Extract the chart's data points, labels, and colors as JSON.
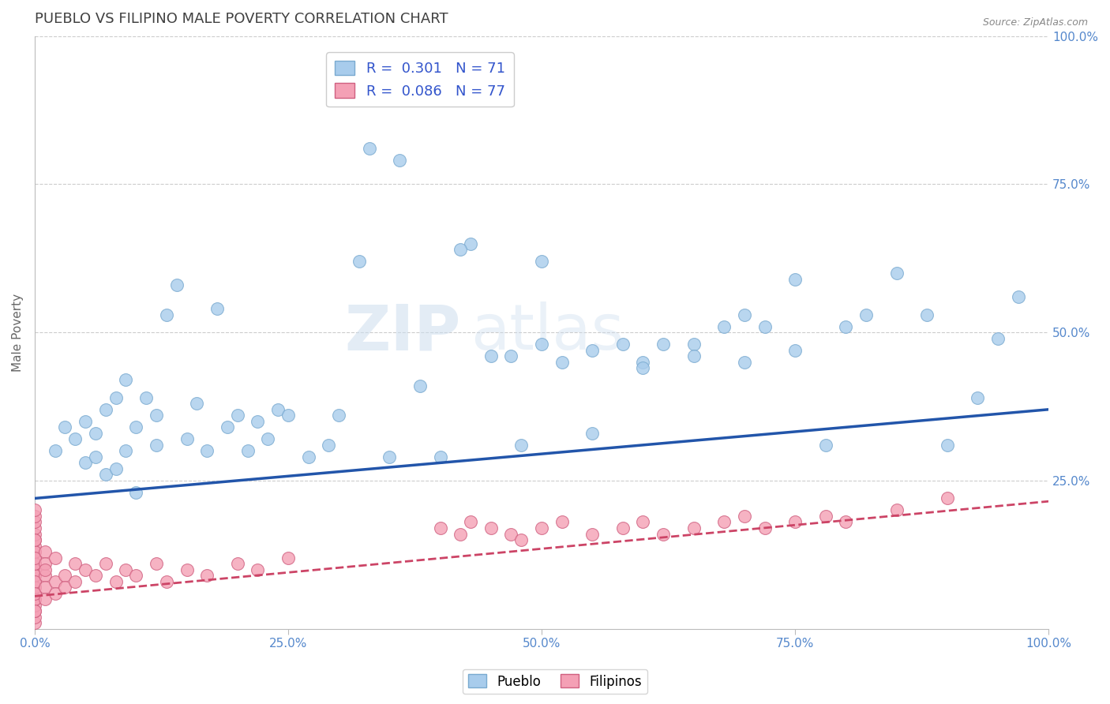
{
  "title": "PUEBLO VS FILIPINO MALE POVERTY CORRELATION CHART",
  "source_text": "Source: ZipAtlas.com",
  "ylabel": "Male Poverty",
  "xlim": [
    0.0,
    1.0
  ],
  "ylim": [
    0.0,
    1.0
  ],
  "pueblo_color": "#A8CCEC",
  "pueblo_edge_color": "#7AAAD0",
  "filipino_color": "#F4A0B5",
  "filipino_edge_color": "#D06080",
  "pueblo_line_color": "#2255AA",
  "filipino_line_color": "#CC4466",
  "watermark_zip": "ZIP",
  "watermark_atlas": "atlas",
  "background_color": "#FFFFFF",
  "title_color": "#404040",
  "legend_text_color": "#3355CC",
  "tick_color": "#5588CC",
  "pueblo_x": [
    0.02,
    0.03,
    0.04,
    0.05,
    0.05,
    0.06,
    0.06,
    0.07,
    0.07,
    0.08,
    0.08,
    0.09,
    0.09,
    0.1,
    0.1,
    0.11,
    0.12,
    0.12,
    0.13,
    0.14,
    0.15,
    0.16,
    0.17,
    0.18,
    0.19,
    0.2,
    0.21,
    0.22,
    0.23,
    0.24,
    0.25,
    0.27,
    0.29,
    0.3,
    0.32,
    0.35,
    0.38,
    0.4,
    0.43,
    0.45,
    0.47,
    0.48,
    0.5,
    0.52,
    0.55,
    0.58,
    0.6,
    0.62,
    0.65,
    0.68,
    0.7,
    0.72,
    0.75,
    0.78,
    0.8,
    0.82,
    0.85,
    0.88,
    0.9,
    0.93,
    0.95,
    0.97,
    0.33,
    0.36,
    0.42,
    0.5,
    0.55,
    0.6,
    0.65,
    0.7,
    0.75
  ],
  "pueblo_y": [
    0.3,
    0.34,
    0.32,
    0.35,
    0.28,
    0.33,
    0.29,
    0.37,
    0.26,
    0.39,
    0.27,
    0.3,
    0.42,
    0.34,
    0.23,
    0.39,
    0.31,
    0.36,
    0.53,
    0.58,
    0.32,
    0.38,
    0.3,
    0.54,
    0.34,
    0.36,
    0.3,
    0.35,
    0.32,
    0.37,
    0.36,
    0.29,
    0.31,
    0.36,
    0.62,
    0.29,
    0.41,
    0.29,
    0.65,
    0.46,
    0.46,
    0.31,
    0.48,
    0.45,
    0.33,
    0.48,
    0.45,
    0.48,
    0.48,
    0.51,
    0.53,
    0.51,
    0.59,
    0.31,
    0.51,
    0.53,
    0.6,
    0.53,
    0.31,
    0.39,
    0.49,
    0.56,
    0.81,
    0.79,
    0.64,
    0.62,
    0.47,
    0.44,
    0.46,
    0.45,
    0.47
  ],
  "filipino_x": [
    0.0,
    0.0,
    0.0,
    0.0,
    0.0,
    0.0,
    0.0,
    0.0,
    0.0,
    0.0,
    0.0,
    0.0,
    0.0,
    0.0,
    0.0,
    0.0,
    0.0,
    0.0,
    0.0,
    0.0,
    0.0,
    0.0,
    0.0,
    0.0,
    0.0,
    0.0,
    0.0,
    0.0,
    0.0,
    0.0,
    0.01,
    0.01,
    0.01,
    0.01,
    0.01,
    0.01,
    0.02,
    0.02,
    0.02,
    0.03,
    0.03,
    0.04,
    0.04,
    0.05,
    0.06,
    0.07,
    0.08,
    0.09,
    0.1,
    0.12,
    0.13,
    0.15,
    0.17,
    0.2,
    0.22,
    0.25,
    0.4,
    0.42,
    0.43,
    0.45,
    0.47,
    0.48,
    0.5,
    0.52,
    0.55,
    0.58,
    0.6,
    0.62,
    0.65,
    0.68,
    0.7,
    0.72,
    0.75,
    0.78,
    0.8,
    0.85,
    0.9
  ],
  "filipino_y": [
    0.01,
    0.02,
    0.03,
    0.04,
    0.05,
    0.06,
    0.07,
    0.08,
    0.09,
    0.1,
    0.11,
    0.12,
    0.13,
    0.14,
    0.15,
    0.16,
    0.17,
    0.18,
    0.19,
    0.2,
    0.05,
    0.07,
    0.09,
    0.11,
    0.13,
    0.15,
    0.03,
    0.08,
    0.12,
    0.06,
    0.09,
    0.13,
    0.07,
    0.11,
    0.05,
    0.1,
    0.08,
    0.12,
    0.06,
    0.09,
    0.07,
    0.11,
    0.08,
    0.1,
    0.09,
    0.11,
    0.08,
    0.1,
    0.09,
    0.11,
    0.08,
    0.1,
    0.09,
    0.11,
    0.1,
    0.12,
    0.17,
    0.16,
    0.18,
    0.17,
    0.16,
    0.15,
    0.17,
    0.18,
    0.16,
    0.17,
    0.18,
    0.16,
    0.17,
    0.18,
    0.19,
    0.17,
    0.18,
    0.19,
    0.18,
    0.2,
    0.22
  ],
  "pueblo_line_x0": 0.0,
  "pueblo_line_y0": 0.22,
  "pueblo_line_x1": 1.0,
  "pueblo_line_y1": 0.37,
  "filipino_line_x0": 0.0,
  "filipino_line_y0": 0.055,
  "filipino_line_x1": 1.0,
  "filipino_line_y1": 0.215
}
